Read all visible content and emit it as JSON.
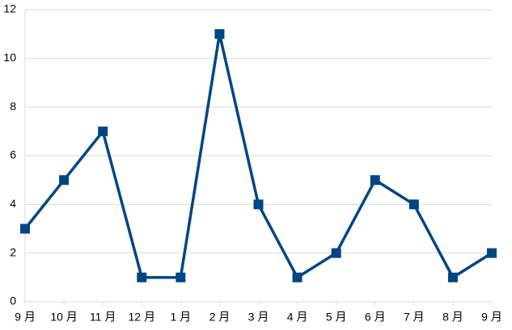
{
  "chart_data": {
    "type": "line",
    "categories": [
      "9 月",
      "10 月",
      "11 月",
      "12 月",
      "1 月",
      "2 月",
      "3 月",
      "4 月",
      "5 月",
      "6 月",
      "7 月",
      "8 月",
      "9 月"
    ],
    "series": [
      {
        "color": "#004586",
        "values": [
          3,
          5,
          7,
          1,
          1,
          11,
          4,
          1,
          2,
          5,
          4,
          1,
          2
        ]
      }
    ],
    "ylim": [
      0,
      12
    ],
    "yticks": [
      0,
      2,
      4,
      6,
      8,
      10,
      12
    ],
    "grid": true
  }
}
